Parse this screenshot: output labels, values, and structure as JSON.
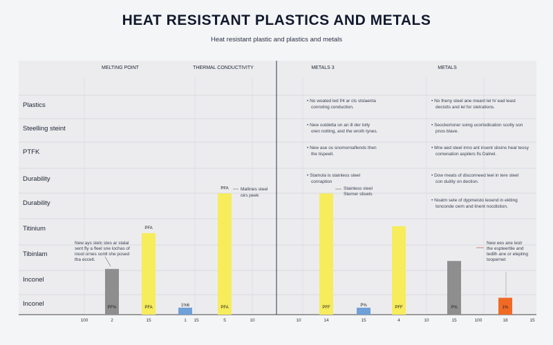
{
  "title": "HEAT RESISTANT PLASTICS AND METALS",
  "subtitle": "Heat resistant plastic and plastics and metals",
  "columns": [
    "MELTING POINT",
    "THERMAL CONDUCTIVITY",
    "METALS 3",
    "METALS"
  ],
  "rows": [
    "Plastics",
    "Steelling steint",
    "PTFK",
    "Durability",
    "Durability",
    "Titinium",
    "Tibinlam",
    "Inconel",
    "Inconel"
  ],
  "notes": [
    {
      "lines": [
        "No woated led f/4 ar cls stslaenta",
        "conroting conduction."
      ]
    },
    {
      "lines": [
        "No theny steel ane meant lel h/ ead least",
        "decistts and lel for stetrations."
      ]
    },
    {
      "lines": [
        "New outdetta on an ill der tolly",
        "oren notting, and the wroth tynes."
      ]
    },
    {
      "lines": [
        "Seockerioner soing ucorlodication scotly son",
        "pnos blave."
      ]
    },
    {
      "lines": [
        "New ase os snomornaflends then",
        "the tispeell."
      ]
    },
    {
      "lines": [
        "Mrw aed steel irmo ant insent sbsins heat teosy",
        "comenation aspilers fis Dalnel."
      ]
    },
    {
      "lines": [
        "Stamola is stainless steel",
        "conraption"
      ]
    },
    {
      "lines": [
        "Dow meats of disconneed leel in tere steel",
        "con duility on dection."
      ]
    },
    {
      "lines": [
        "Noatm sete of dypmeisto leoend in ekiting",
        "tonconde cwm and linent nocdistion."
      ]
    },
    {
      "lines": [
        "Mallines steel",
        "oirs peek"
      ]
    },
    {
      "lines": [
        "Stainless steel",
        "Sterner stiuels"
      ]
    },
    {
      "lines": [
        "New ays stelc stes ar stalal",
        "sent fly a fleel sne lochas of",
        "inool ornes sontl she posed",
        "tha eccetl."
      ]
    },
    {
      "lines": [
        "New ees ane leslr",
        "the espteertlie and",
        "tedllh ane or elepling",
        "toopernet"
      ]
    }
  ],
  "chart_data": {
    "type": "bar",
    "title": "HEAT RESISTANT PLASTICS AND METALS",
    "subtitle": "Heat resistant plastic and plastics and metals",
    "column_groups": [
      "MELTING POINT",
      "THERMAL CONDUCTIVITY",
      "METALS 3",
      "METALS"
    ],
    "x_tick_labels": [
      "100",
      "2",
      "15",
      "1",
      "15",
      "5",
      "10",
      "10",
      "14",
      "15",
      "4",
      "10",
      "15",
      "100",
      "18",
      "15"
    ],
    "bars": [
      {
        "label": "PF%",
        "category": "2",
        "value": 0.46,
        "color": "#8e8e8e"
      },
      {
        "label": "PFF",
        "category": "15",
        "value": 0.82,
        "color": "#f7ec5c"
      },
      {
        "label": "PFA",
        "top_label": "PFA",
        "category": "15",
        "value": 0.82,
        "color": "#f7ec5c"
      },
      {
        "label": "1%6",
        "category": "1",
        "value": 0.07,
        "color": "#6fa0d8"
      },
      {
        "label": "PFA",
        "top_label": "PFA",
        "category": "5",
        "value": 1.22,
        "color": "#f7ec5c"
      },
      {
        "label": "PFF",
        "category": "14",
        "value": 1.22,
        "color": "#f7ec5c"
      },
      {
        "label": "P%",
        "category": "15",
        "value": 0.07,
        "color": "#6fa0d8"
      },
      {
        "label": "PFF",
        "category": "4",
        "value": 0.89,
        "color": "#f7ec5c"
      },
      {
        "label": "P%",
        "category": "15",
        "value": 0.54,
        "color": "#8e8e8e"
      },
      {
        "label": "1%",
        "category": "18",
        "value": 0.17,
        "color": "#f06a25"
      }
    ]
  }
}
